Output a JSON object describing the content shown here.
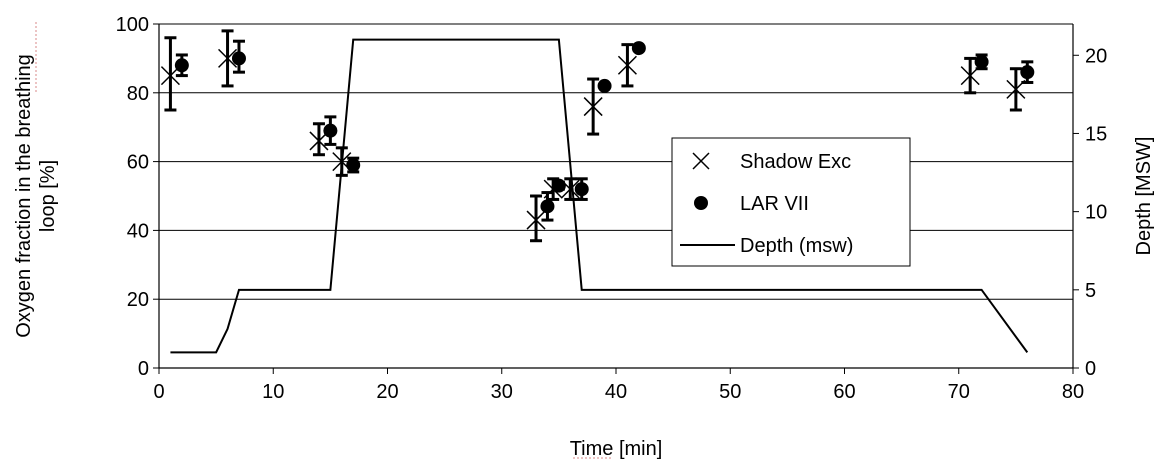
{
  "chart_data": {
    "type": "scatter",
    "xlabel": "Time [min]",
    "ylabel": "Oxygen fraction in the breathing loop [%]",
    "ylabel_lines": [
      "Oxygen fraction in the breathing",
      "loop [%]"
    ],
    "y2label": "Depth [MSW]",
    "xlim": [
      0,
      80
    ],
    "ylim": [
      0,
      100
    ],
    "y2lim": [
      0,
      22
    ],
    "x_ticks": [
      0,
      10,
      20,
      30,
      40,
      50,
      60,
      70,
      80
    ],
    "y_ticks": [
      0,
      20,
      40,
      60,
      80,
      100
    ],
    "y2_ticks": [
      0,
      5,
      10,
      15,
      20
    ],
    "gridlines": "horizontal",
    "legend_position": "center-right",
    "series": [
      {
        "name": "Shadow Exc",
        "marker": "x",
        "axis": "left",
        "points": [
          {
            "x": 1,
            "y": 85,
            "err_low": 75,
            "err_high": 96
          },
          {
            "x": 6,
            "y": 90,
            "err_low": 82,
            "err_high": 98
          },
          {
            "x": 14,
            "y": 66,
            "err_low": 62,
            "err_high": 71
          },
          {
            "x": 16,
            "y": 60,
            "err_low": 56,
            "err_high": 64
          },
          {
            "x": 33,
            "y": 43,
            "err_low": 37,
            "err_high": 50
          },
          {
            "x": 34.5,
            "y": 52,
            "err_low": 49,
            "err_high": 55
          },
          {
            "x": 36,
            "y": 52,
            "err_low": 49,
            "err_high": 55
          },
          {
            "x": 38,
            "y": 76,
            "err_low": 68,
            "err_high": 84
          },
          {
            "x": 41,
            "y": 88,
            "err_low": 82,
            "err_high": 94
          },
          {
            "x": 71,
            "y": 85,
            "err_low": 80,
            "err_high": 90
          },
          {
            "x": 75,
            "y": 81,
            "err_low": 75,
            "err_high": 87
          }
        ]
      },
      {
        "name": "LAR VII",
        "marker": "circle",
        "axis": "left",
        "points": [
          {
            "x": 2,
            "y": 88,
            "err_low": 85,
            "err_high": 91
          },
          {
            "x": 7,
            "y": 90,
            "err_low": 86,
            "err_high": 95
          },
          {
            "x": 15,
            "y": 69,
            "err_low": 65,
            "err_high": 73
          },
          {
            "x": 17,
            "y": 59,
            "err_low": 57,
            "err_high": 61
          },
          {
            "x": 34,
            "y": 47,
            "err_low": 43,
            "err_high": 51
          },
          {
            "x": 35,
            "y": 53,
            "err_low": 52,
            "err_high": 54
          },
          {
            "x": 37,
            "y": 52,
            "err_low": 49,
            "err_high": 55
          },
          {
            "x": 39,
            "y": 82,
            "err_low": 82,
            "err_high": 82
          },
          {
            "x": 42,
            "y": 93,
            "err_low": 93,
            "err_high": 93
          },
          {
            "x": 72,
            "y": 89,
            "err_low": 87,
            "err_high": 91
          },
          {
            "x": 76,
            "y": 86,
            "err_low": 83,
            "err_high": 89
          }
        ]
      },
      {
        "name": "Depth (msw)",
        "marker": "line",
        "axis": "right",
        "x": [
          1,
          5,
          6,
          7,
          15,
          17,
          35,
          37,
          72,
          76
        ],
        "y": [
          1,
          1,
          2.5,
          5,
          5,
          21,
          21,
          5,
          5,
          1
        ]
      }
    ]
  }
}
